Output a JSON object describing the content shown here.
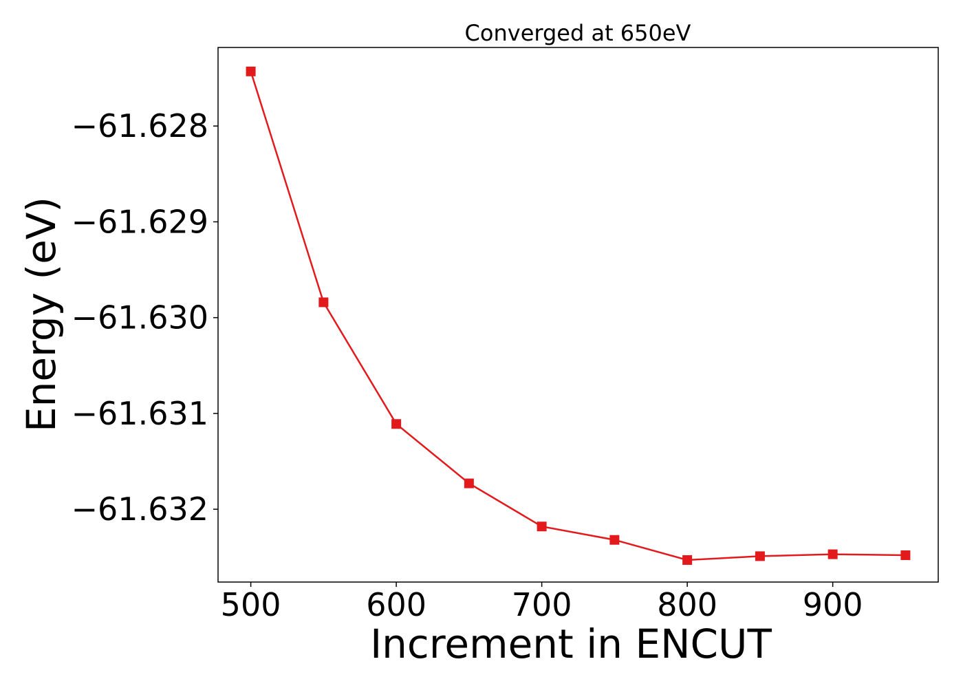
{
  "chart_data": {
    "type": "line",
    "title": "Converged at 650eV",
    "xlabel": "Increment in ENCUT",
    "ylabel": "Energy (eV)",
    "x": [
      500,
      550,
      600,
      650,
      700,
      750,
      800,
      850,
      900,
      950
    ],
    "series": [
      {
        "values": [
          -61.62743,
          -61.62984,
          -61.63111,
          -61.63173,
          -61.63218,
          -61.63232,
          -61.63253,
          -61.63249,
          -61.63247,
          -61.63248
        ],
        "color": "#e31a1c",
        "marker": "square"
      }
    ],
    "xticks": [
      500,
      600,
      700,
      800,
      900
    ],
    "xtick_labels": [
      "500",
      "600",
      "700",
      "800",
      "900"
    ],
    "yticks": [
      -61.628,
      -61.629,
      -61.63,
      -61.631,
      -61.632
    ],
    "ytick_labels": [
      "−61.628",
      "−61.629",
      "−61.630",
      "−61.631",
      "−61.632"
    ],
    "xlim": [
      477.5,
      972.5
    ],
    "ylim": [
      -61.63276,
      -61.62718
    ],
    "grid": false,
    "legend": "none"
  }
}
